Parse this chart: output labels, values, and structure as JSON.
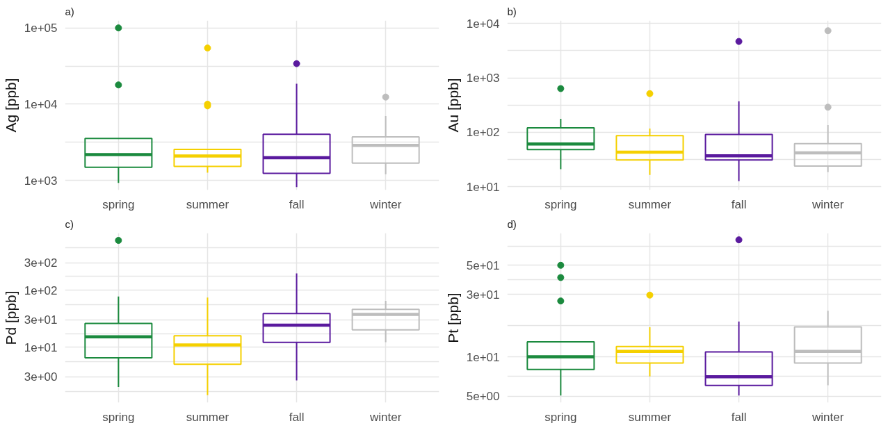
{
  "chart_data": [
    {
      "type": "box",
      "title": "a)",
      "ylabel": "Ag [ppb]",
      "categories": [
        "spring",
        "summer",
        "fall",
        "winter"
      ],
      "colors": [
        "#1b8a3e",
        "#f5d000",
        "#5a1a9e",
        "#bdbdbd"
      ],
      "log": "y",
      "grid": true,
      "ylim": [
        750,
        125000
      ],
      "yticks": [
        {
          "value": 1000,
          "label": "1e+03"
        },
        {
          "value": 3162,
          "label": null
        },
        {
          "value": 10000,
          "label": "1e+04"
        },
        {
          "value": 31623,
          "label": null
        },
        {
          "value": 100000,
          "label": "1e+05"
        }
      ],
      "boxes": [
        {
          "low": 930,
          "q1": 1490,
          "median": 2180,
          "q3": 3560,
          "high": 3560,
          "outliers": [
            17900,
            100000
          ]
        },
        {
          "low": 1270,
          "q1": 1530,
          "median": 2100,
          "q3": 2560,
          "high": 2560,
          "outliers": [
            9500,
            10000,
            54500
          ]
        },
        {
          "low": 820,
          "q1": 1240,
          "median": 1990,
          "q3": 4040,
          "high": 18500,
          "outliers": [
            34000
          ]
        },
        {
          "low": 1210,
          "q1": 1690,
          "median": 2890,
          "q3": 3730,
          "high": 7000,
          "outliers": [
            12400
          ]
        }
      ]
    },
    {
      "type": "box",
      "title": "b)",
      "ylabel": "Au [ppb]",
      "categories": [
        "spring",
        "summer",
        "fall",
        "winter"
      ],
      "colors": [
        "#1b8a3e",
        "#f5d000",
        "#5a1a9e",
        "#bdbdbd"
      ],
      "log": "y",
      "grid": true,
      "ylim": [
        8.7,
        11300
      ],
      "yticks": [
        {
          "value": 10,
          "label": "1e+01"
        },
        {
          "value": 31.6,
          "label": null
        },
        {
          "value": 100,
          "label": "1e+02"
        },
        {
          "value": 316,
          "label": null
        },
        {
          "value": 1000,
          "label": "1e+03"
        },
        {
          "value": 3162,
          "label": null
        },
        {
          "value": 10000,
          "label": "1e+04"
        }
      ],
      "boxes": [
        {
          "low": 21,
          "q1": 48,
          "median": 61,
          "q3": 121,
          "high": 177,
          "outliers": [
            635
          ]
        },
        {
          "low": 16.5,
          "q1": 31,
          "median": 43,
          "q3": 87,
          "high": 117,
          "outliers": [
            513
          ]
        },
        {
          "low": 12.7,
          "q1": 31,
          "median": 37,
          "q3": 91,
          "high": 372,
          "outliers": [
            4660
          ]
        },
        {
          "low": 18.6,
          "q1": 24,
          "median": 42,
          "q3": 62,
          "high": 136,
          "outliers": [
            289,
            7330
          ]
        }
      ]
    },
    {
      "type": "box",
      "title": "c)",
      "ylabel": "Pd [ppb]",
      "categories": [
        "spring",
        "summer",
        "fall",
        "winter"
      ],
      "colors": [
        "#1b8a3e",
        "#f5d000",
        "#5a1a9e",
        "#bdbdbd"
      ],
      "log": "y",
      "grid": true,
      "ylim": [
        1.06,
        1000
      ],
      "yticks": [
        {
          "value": 1.64,
          "label": null
        },
        {
          "value": 3,
          "label": "3e+00"
        },
        {
          "value": 5.48,
          "label": null
        },
        {
          "value": 10,
          "label": "1e+01"
        },
        {
          "value": 17.3,
          "label": null
        },
        {
          "value": 30,
          "label": "3e+01"
        },
        {
          "value": 54.8,
          "label": null
        },
        {
          "value": 100,
          "label": "1e+02"
        },
        {
          "value": 173,
          "label": null
        },
        {
          "value": 300,
          "label": "3e+02"
        },
        {
          "value": 548,
          "label": null
        }
      ],
      "boxes": [
        {
          "low": 2.0,
          "q1": 6.5,
          "median": 15.1,
          "q3": 26,
          "high": 77,
          "outliers": [
            745
          ]
        },
        {
          "low": 1.43,
          "q1": 5.0,
          "median": 10.9,
          "q3": 15.8,
          "high": 74
        },
        {
          "low": 2.6,
          "q1": 12.1,
          "median": 24.3,
          "q3": 38.9,
          "high": 196
        },
        {
          "low": 12.2,
          "q1": 20.1,
          "median": 37.5,
          "q3": 45.9,
          "high": 64.6
        }
      ]
    },
    {
      "type": "box",
      "title": "d)",
      "ylabel": "Pt [ppb]",
      "categories": [
        "spring",
        "summer",
        "fall",
        "winter"
      ],
      "colors": [
        "#1b8a3e",
        "#f5d000",
        "#5a1a9e",
        "#bdbdbd"
      ],
      "log": "y",
      "grid": true,
      "ylim": [
        4.47,
        88
      ],
      "yticks": [
        {
          "value": 5,
          "label": "5e+00"
        },
        {
          "value": 7.07,
          "label": null
        },
        {
          "value": 10,
          "label": "1e+01"
        },
        {
          "value": 17.3,
          "label": null
        },
        {
          "value": 30,
          "label": "3e+01"
        },
        {
          "value": 38.7,
          "label": null
        },
        {
          "value": 50,
          "label": "5e+01"
        },
        {
          "value": 70,
          "label": null
        }
      ],
      "boxes": [
        {
          "low": 5.07,
          "q1": 8.0,
          "median": 10,
          "q3": 13.0,
          "high": 13.0,
          "outliers": [
            26.7,
            40.3,
            50
          ]
        },
        {
          "low": 7.08,
          "q1": 8.98,
          "median": 11.0,
          "q3": 12.0,
          "high": 16.8,
          "outliers": [
            29.6
          ]
        },
        {
          "low": 5.07,
          "q1": 6.04,
          "median": 7.05,
          "q3": 10.9,
          "high": 18.6,
          "outliers": [
            78.2
          ]
        },
        {
          "low": 6.07,
          "q1": 8.98,
          "median": 11.0,
          "q3": 16.9,
          "high": 22.5
        }
      ]
    }
  ]
}
